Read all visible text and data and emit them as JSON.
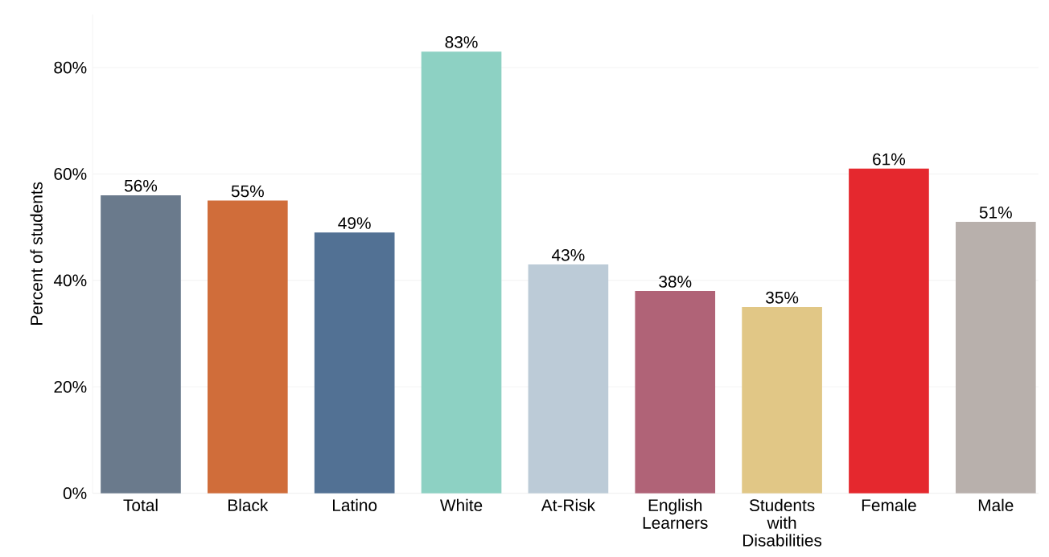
{
  "chart_data": {
    "type": "bar",
    "ylabel": "Percent of students",
    "categories": [
      "Total",
      "Black",
      "Latino",
      "White",
      "At-Risk",
      "English Learners",
      "Students with Disabilities",
      "Female",
      "Male"
    ],
    "values": [
      56,
      55,
      49,
      83,
      43,
      38,
      35,
      61,
      51
    ],
    "value_labels": [
      "56%",
      "55%",
      "49%",
      "83%",
      "43%",
      "38%",
      "35%",
      "61%",
      "51%"
    ],
    "colors": [
      "#6a7a8c",
      "#d06d3a",
      "#527194",
      "#8dd1c3",
      "#bccbd7",
      "#b06377",
      "#e1c786",
      "#e5282e",
      "#b8b0ac"
    ],
    "ylim": [
      0,
      90
    ],
    "yticks": [
      {
        "value": 0,
        "label": "0%"
      },
      {
        "value": 20,
        "label": "20%"
      },
      {
        "value": 40,
        "label": "40%"
      },
      {
        "value": 60,
        "label": "60%"
      },
      {
        "value": 80,
        "label": "80%"
      }
    ],
    "grid": "y"
  }
}
